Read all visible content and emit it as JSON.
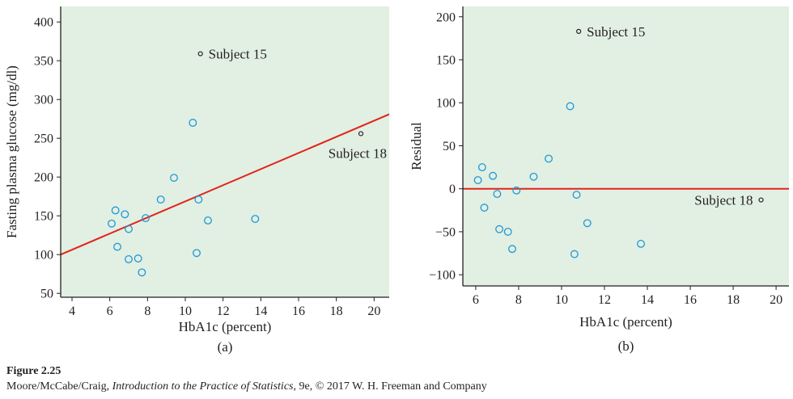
{
  "caption": {
    "figure_label": "Figure 2.25",
    "credit_authors": "Moore/McCabe/Craig, ",
    "credit_title": "Introduction to the Practice of Statistics",
    "credit_rest": ", 9e, © 2017 W. H. Freeman and Company"
  },
  "colors": {
    "plot_background": "#e2efe3",
    "point_stroke": "#1c9ad6",
    "outlier_stroke": "#231f20",
    "line": "#e2231a",
    "axis": "#231f20"
  },
  "chart_data": [
    {
      "type": "scatter",
      "panel_label": "(a)",
      "xlabel": "HbA1c (percent)",
      "ylabel": "Fasting plasma glucose (mg/dl)",
      "xlim": [
        3.4,
        20.8
      ],
      "ylim": [
        45,
        420
      ],
      "xticks": [
        4,
        6,
        8,
        10,
        12,
        14,
        16,
        18,
        20
      ],
      "yticks": [
        50,
        100,
        150,
        200,
        250,
        300,
        350,
        400
      ],
      "grid": false,
      "regression_line": {
        "from": [
          3.4,
          100
        ],
        "to": [
          20.8,
          281
        ]
      },
      "points": [
        {
          "x": 6.1,
          "y": 140
        },
        {
          "x": 6.3,
          "y": 157
        },
        {
          "x": 6.4,
          "y": 110
        },
        {
          "x": 6.8,
          "y": 152
        },
        {
          "x": 7.0,
          "y": 133
        },
        {
          "x": 7.0,
          "y": 94
        },
        {
          "x": 7.5,
          "y": 95
        },
        {
          "x": 7.7,
          "y": 77
        },
        {
          "x": 7.9,
          "y": 147
        },
        {
          "x": 8.7,
          "y": 171
        },
        {
          "x": 9.4,
          "y": 199
        },
        {
          "x": 10.4,
          "y": 270
        },
        {
          "x": 10.6,
          "y": 102
        },
        {
          "x": 10.7,
          "y": 171
        },
        {
          "x": 11.2,
          "y": 144
        },
        {
          "x": 13.7,
          "y": 146
        }
      ],
      "outliers": [
        {
          "x": 10.8,
          "y": 359,
          "label": "Subject 15",
          "label_side": "right"
        },
        {
          "x": 19.3,
          "y": 256,
          "label": "Subject 18",
          "label_side": "below-left"
        }
      ]
    },
    {
      "type": "scatter",
      "panel_label": "(b)",
      "xlabel": "HbA1c (percent)",
      "ylabel": "Residual",
      "xlim": [
        5.4,
        20.6
      ],
      "ylim": [
        -113,
        212
      ],
      "xticks": [
        6,
        8,
        10,
        12,
        14,
        16,
        18,
        20
      ],
      "yticks": [
        -100,
        -50,
        0,
        50,
        100,
        150,
        200
      ],
      "grid": false,
      "reference_line_y": 0,
      "points": [
        {
          "x": 6.1,
          "y": 10
        },
        {
          "x": 6.3,
          "y": 25
        },
        {
          "x": 6.4,
          "y": -22
        },
        {
          "x": 6.8,
          "y": 15
        },
        {
          "x": 7.0,
          "y": -6
        },
        {
          "x": 7.1,
          "y": -47
        },
        {
          "x": 7.5,
          "y": -50
        },
        {
          "x": 7.7,
          "y": -70
        },
        {
          "x": 7.9,
          "y": -2
        },
        {
          "x": 8.7,
          "y": 14
        },
        {
          "x": 9.4,
          "y": 35
        },
        {
          "x": 10.4,
          "y": 96
        },
        {
          "x": 10.6,
          "y": -76
        },
        {
          "x": 10.7,
          "y": -7
        },
        {
          "x": 11.2,
          "y": -40
        },
        {
          "x": 13.7,
          "y": -64
        }
      ],
      "outliers": [
        {
          "x": 10.8,
          "y": 183,
          "label": "Subject 15",
          "label_side": "right"
        },
        {
          "x": 19.3,
          "y": -13,
          "label": "Subject 18",
          "label_side": "left"
        }
      ]
    }
  ]
}
